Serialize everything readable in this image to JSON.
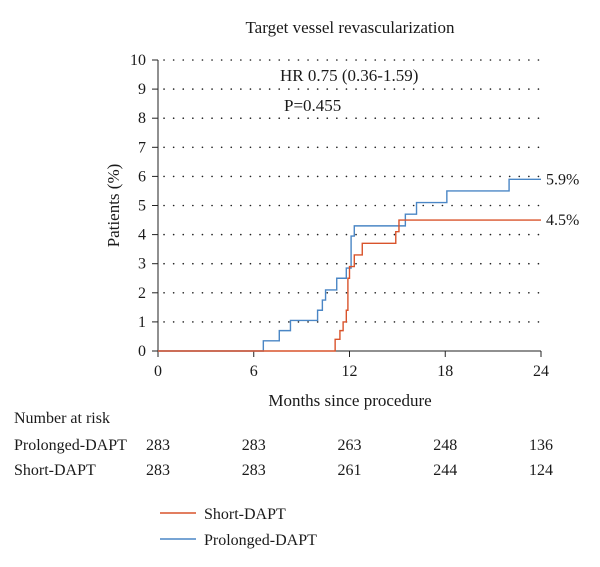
{
  "chart_data": {
    "type": "line",
    "title": "Target vessel revascularization",
    "xlabel": "Months since procedure",
    "ylabel": "Patients (%)",
    "xlim": [
      0,
      24
    ],
    "ylim": [
      0,
      10
    ],
    "xticks": [
      0,
      6,
      12,
      18,
      24
    ],
    "yticks": [
      0,
      1,
      2,
      3,
      4,
      5,
      6,
      7,
      8,
      9,
      10
    ],
    "grid": "dotted-horizontal",
    "step": true,
    "annotations": {
      "hr": "HR 0.75 (0.36-1.59)",
      "p": "P=0.455"
    },
    "series": [
      {
        "name": "Short-DAPT",
        "color": "#d9532b",
        "end_label": "4.5%",
        "x": [
          0,
          11.1,
          11.4,
          11.6,
          11.8,
          11.9,
          12.0,
          12.1,
          12.3,
          12.8,
          13.1,
          14.9,
          15.1,
          15.5,
          24
        ],
        "y": [
          0,
          0.4,
          0.7,
          1.0,
          1.4,
          2.5,
          2.9,
          2.9,
          3.3,
          3.7,
          3.7,
          4.1,
          4.5,
          4.5,
          4.5
        ]
      },
      {
        "name": "Prolonged-DAPT",
        "color": "#4a86c5",
        "end_label": "5.9%",
        "x": [
          0,
          6.6,
          7.6,
          8.3,
          9.2,
          10.0,
          10.3,
          10.5,
          11.2,
          11.8,
          12.1,
          12.3,
          12.6,
          14.8,
          15.5,
          16.2,
          18.1,
          22.0,
          24
        ],
        "y": [
          0,
          0.35,
          0.7,
          1.05,
          1.05,
          1.4,
          1.75,
          2.1,
          2.5,
          2.85,
          3.95,
          4.3,
          4.3,
          4.3,
          4.7,
          5.1,
          5.5,
          5.9,
          5.9
        ]
      }
    ],
    "number_at_risk": {
      "title": "Number at risk",
      "times": [
        0,
        6,
        12,
        18,
        24
      ],
      "rows": [
        {
          "label": "Prolonged-DAPT",
          "values": [
            "283",
            "283",
            "263",
            "248",
            "136"
          ]
        },
        {
          "label": "Short-DAPT",
          "values": [
            "283",
            "283",
            "261",
            "244",
            "124"
          ]
        }
      ]
    },
    "legend": {
      "placement": "bottom-center",
      "items": [
        {
          "label": "Short-DAPT",
          "color": "#d9532b"
        },
        {
          "label": "Prolonged-DAPT",
          "color": "#4a86c5"
        }
      ]
    }
  }
}
